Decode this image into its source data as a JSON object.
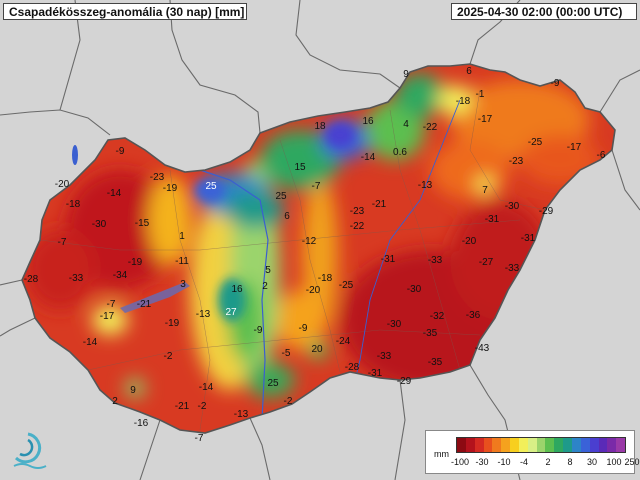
{
  "title": "Csapadékösszeg-anomália (30 nap) [mm]",
  "timestamp": "2025-04-30 02:00 (00:00 UTC)",
  "legend": {
    "unit": "mm",
    "ticks": [
      "-100",
      "-30",
      "-10",
      "-4",
      "2",
      "8",
      "30",
      "100",
      "250"
    ],
    "colors": [
      "#8c0a12",
      "#b3121c",
      "#d42a22",
      "#e8501e",
      "#f07a1e",
      "#f5a21e",
      "#f7cf1e",
      "#f2ef5a",
      "#d8ef86",
      "#9bd46c",
      "#5cbf50",
      "#2ea860",
      "#1e9a8a",
      "#2d84c8",
      "#3a62d8",
      "#4a3fd0",
      "#5a2ab8",
      "#7a2aa8",
      "#9a3aa8"
    ]
  },
  "map_colors": {
    "background": "#d4d4d4",
    "neighbors": "#dcdcdc",
    "country_base": "#d83a22",
    "border": "#5a5a5a"
  },
  "anomaly_values": [
    "9",
    "6",
    "-9",
    "-1",
    "-18",
    "-22",
    "-17",
    "18",
    "16",
    "4",
    "-25",
    "-17",
    "-6",
    "-23",
    "-9",
    "-14",
    "0.6",
    "-13",
    "7",
    "-23",
    "-20",
    "-14",
    "-19",
    "25",
    "15",
    "-7",
    "-21",
    "-30",
    "-29",
    "-18",
    "25",
    "-23",
    "-31",
    "-30",
    "-22",
    "-15",
    "1",
    "6",
    "-12",
    "-20",
    "-31",
    "-7",
    "-19",
    "-11",
    "-18",
    "-33",
    "-27",
    "-33",
    "-28",
    "-33",
    "-34",
    "5",
    "-25",
    "-31",
    "-30",
    "3",
    "-21",
    "16",
    "2",
    "-20",
    "-7",
    "-17",
    "-19",
    "-13",
    "27",
    "-32",
    "-36",
    "-9",
    "-9",
    "-30",
    "-35",
    "-14",
    "-24",
    "-43",
    "-2",
    "-5",
    "20",
    "-33",
    "-35",
    "-28",
    "-31",
    "-29",
    "9",
    "-14",
    "25",
    "2",
    "-21",
    "-2",
    "-16",
    "-13",
    "-2",
    "-7"
  ]
}
